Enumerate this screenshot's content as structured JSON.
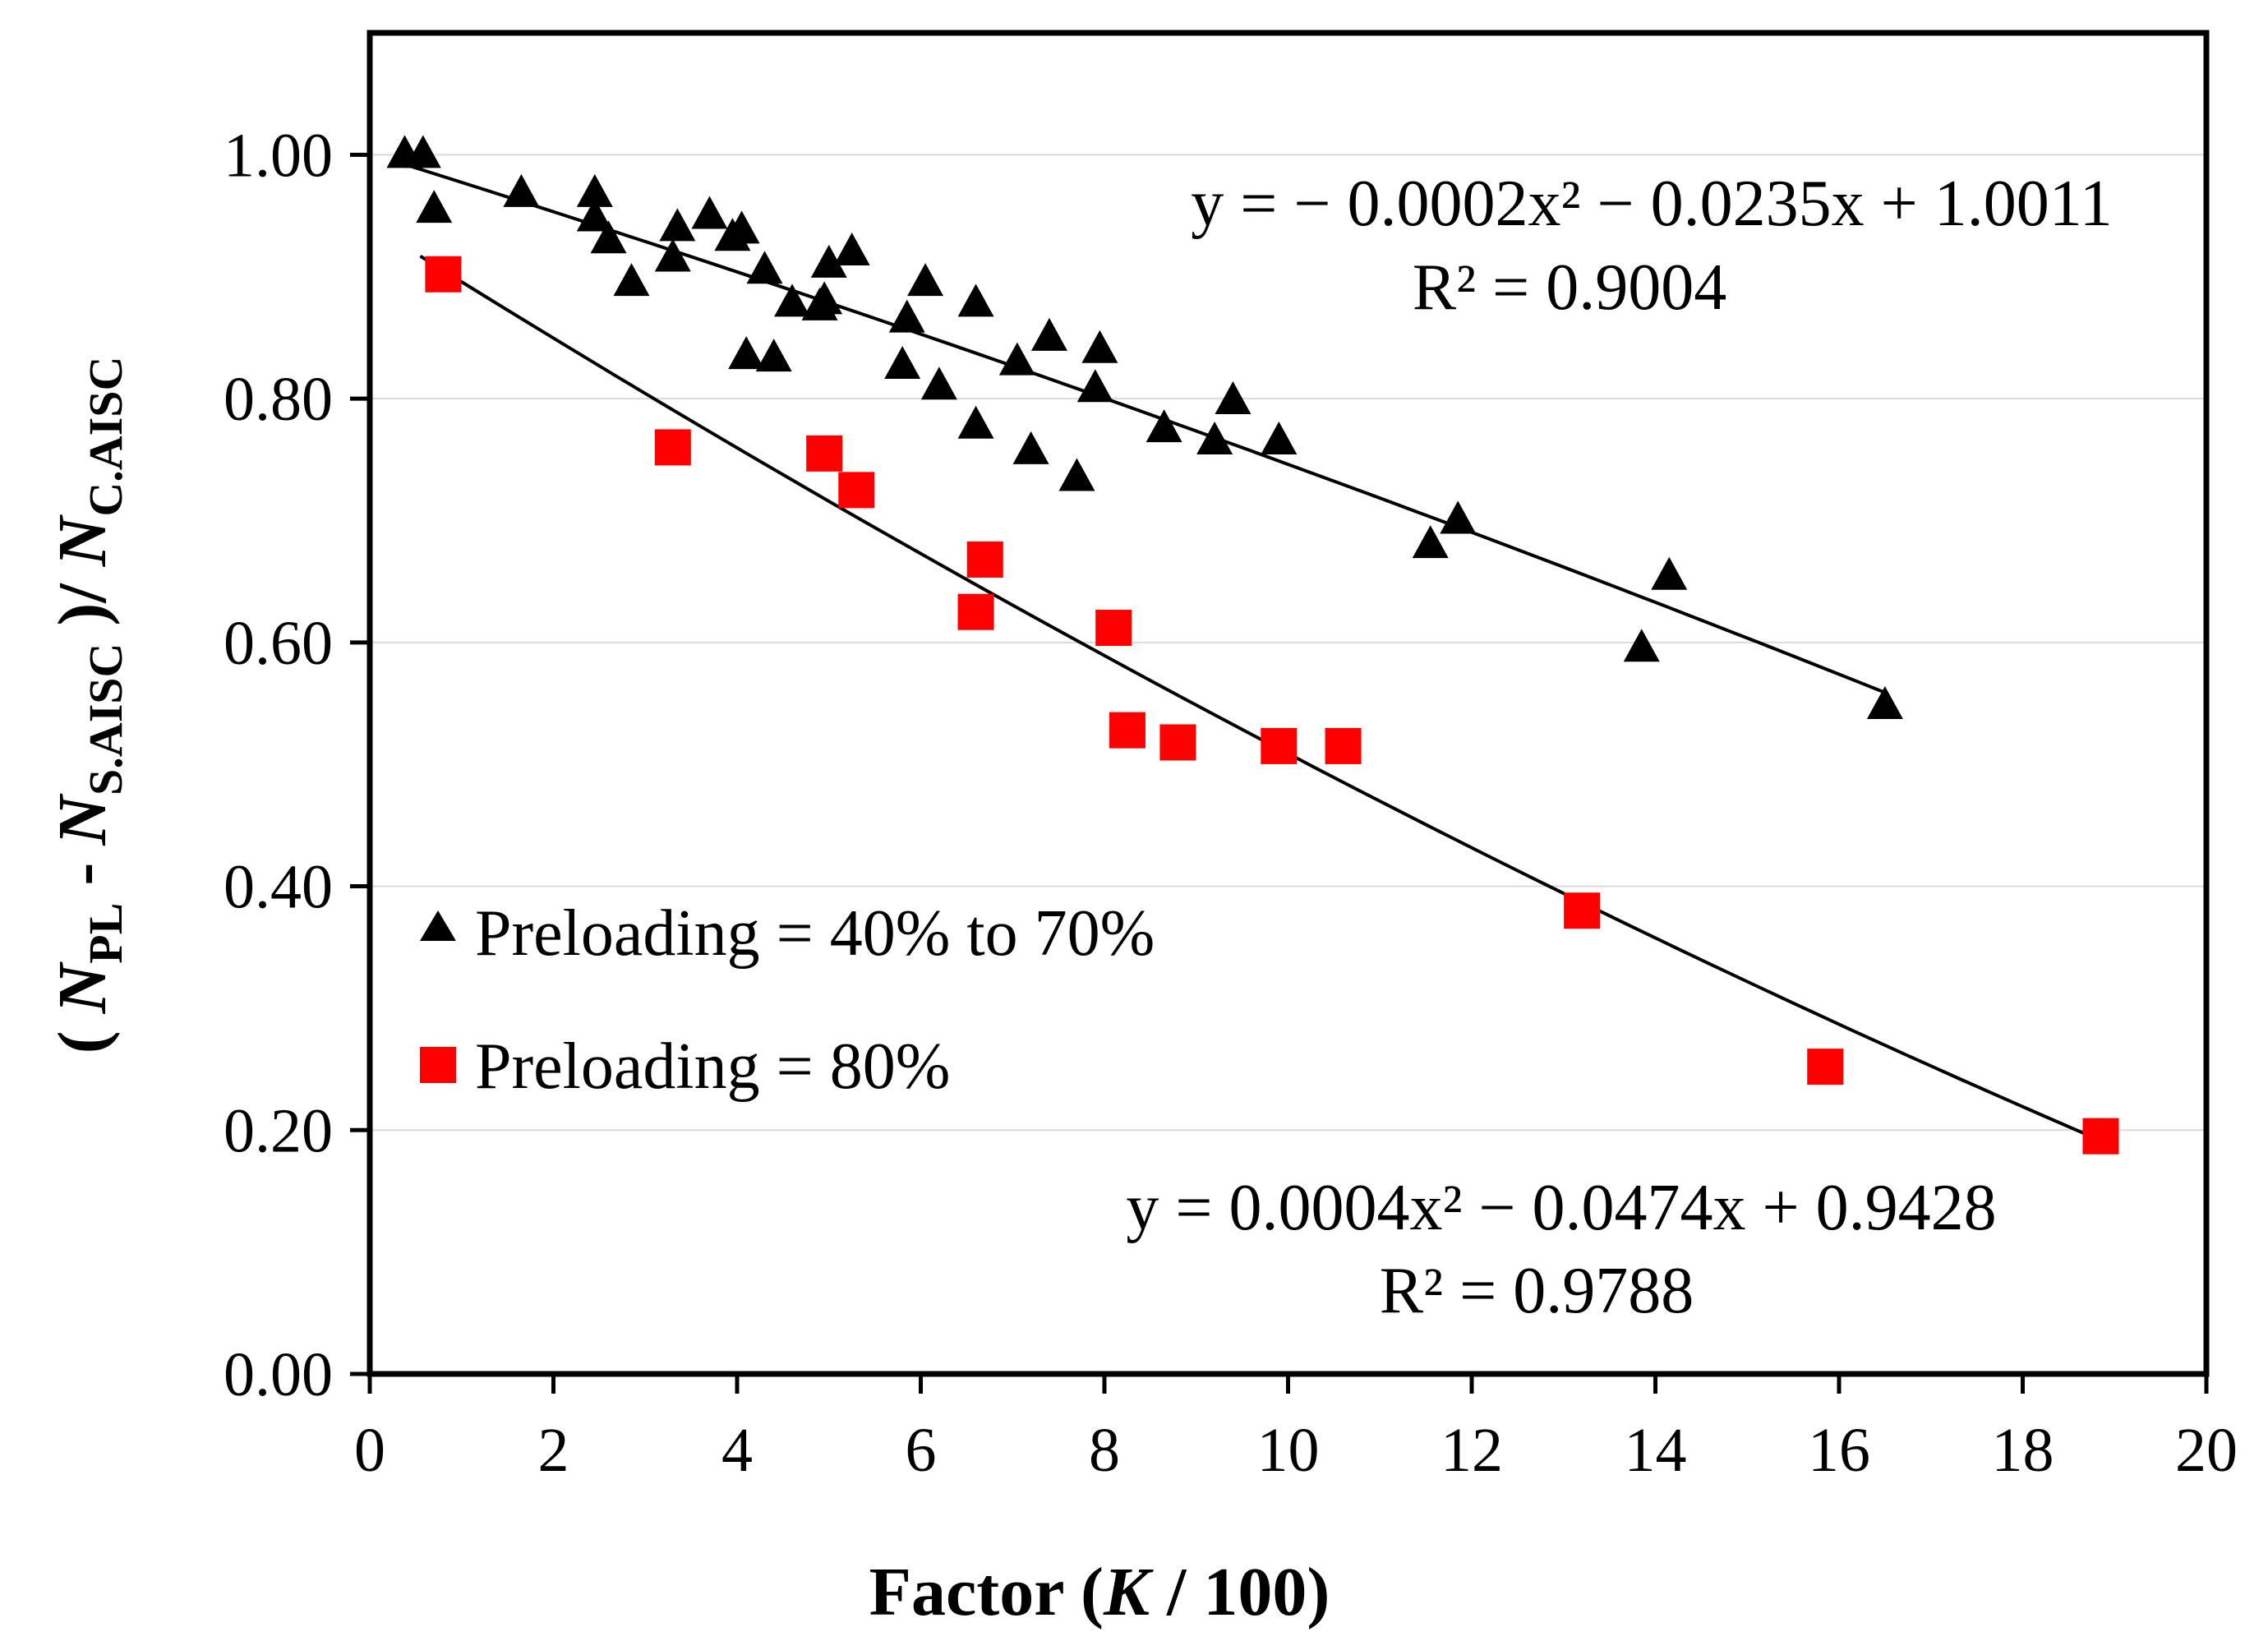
{
  "chart_data": {
    "type": "scatter",
    "title": "",
    "xlabel": "Factor (K / 100)",
    "xlabel_parts": {
      "prefix": "Factor (",
      "italic": "K",
      "suffix": " / 100)"
    },
    "ylabel": "( N_PL - N_S.AISC )/ N_C.AISC",
    "ylabel_parts": {
      "open": "( ",
      "n1": "N",
      "sub1": "PL",
      "minus": " - ",
      "n2": "N",
      "sub2": "S.AISC",
      "close": " )/ ",
      "n3": "N",
      "sub3": "C.AISC"
    },
    "xlim": [
      0,
      20
    ],
    "ylim": [
      0,
      1.1
    ],
    "xticks": [
      0,
      2,
      4,
      6,
      8,
      10,
      12,
      14,
      16,
      18,
      20
    ],
    "xtick_labels": [
      "0",
      "2",
      "4",
      "6",
      "8",
      "10",
      "12",
      "14",
      "16",
      "18",
      "20"
    ],
    "yticks": [
      0,
      0.2,
      0.4,
      0.6,
      0.8,
      1.0
    ],
    "ytick_labels": [
      "0.00",
      "0.20",
      "0.40",
      "0.60",
      "0.80",
      "1.00"
    ],
    "grid": "horizontal",
    "legend_position": "left-middle",
    "series": [
      {
        "name": "Preloading = 40% to 70%",
        "marker": "triangle",
        "color": "#000000",
        "x": [
          0.38,
          0.58,
          0.7,
          1.65,
          2.45,
          2.45,
          2.6,
          2.85,
          3.3,
          3.35,
          3.7,
          3.95,
          4.05,
          4.1,
          4.3,
          4.4,
          4.6,
          4.9,
          4.95,
          5.0,
          5.25,
          5.8,
          5.85,
          6.05,
          6.2,
          6.6,
          6.6,
          7.05,
          7.2,
          7.4,
          7.7,
          7.9,
          7.95,
          8.65,
          9.2,
          9.4,
          9.9,
          11.55,
          11.85,
          13.85,
          14.15,
          16.5
        ],
        "y": [
          1.0,
          1.0,
          0.955,
          0.968,
          0.968,
          0.948,
          0.93,
          0.895,
          0.915,
          0.94,
          0.95,
          0.932,
          0.938,
          0.835,
          0.905,
          0.833,
          0.878,
          0.875,
          0.88,
          0.91,
          0.92,
          0.827,
          0.865,
          0.895,
          0.81,
          0.878,
          0.778,
          0.83,
          0.757,
          0.85,
          0.735,
          0.808,
          0.84,
          0.775,
          0.765,
          0.798,
          0.765,
          0.68,
          0.7,
          0.595,
          0.654,
          0.548
        ],
        "fit": {
          "a": -0.0002,
          "b": -0.0235,
          "c": 1.0011,
          "x_range": [
            0.38,
            16.5
          ]
        },
        "equation": "y = − 0.0002x² − 0.0235x + 1.0011",
        "r2": "R² = 0.9004"
      },
      {
        "name": "Preloading = 80%",
        "marker": "square",
        "color": "#ff0000",
        "x": [
          0.8,
          3.3,
          4.95,
          5.3,
          6.6,
          6.7,
          8.1,
          8.25,
          8.8,
          9.9,
          10.6,
          13.2,
          15.85,
          18.85
        ],
        "y": [
          0.902,
          0.76,
          0.755,
          0.725,
          0.625,
          0.668,
          0.612,
          0.528,
          0.518,
          0.515,
          0.515,
          0.38,
          0.252,
          0.195
        ],
        "fit": {
          "a": 0.0004,
          "b": -0.0474,
          "c": 0.9428,
          "x_range": [
            0.55,
            18.85
          ]
        },
        "equation": "y = 0.0004x² − 0.0474x + 0.9428",
        "r2": "R² = 0.9788"
      }
    ]
  }
}
